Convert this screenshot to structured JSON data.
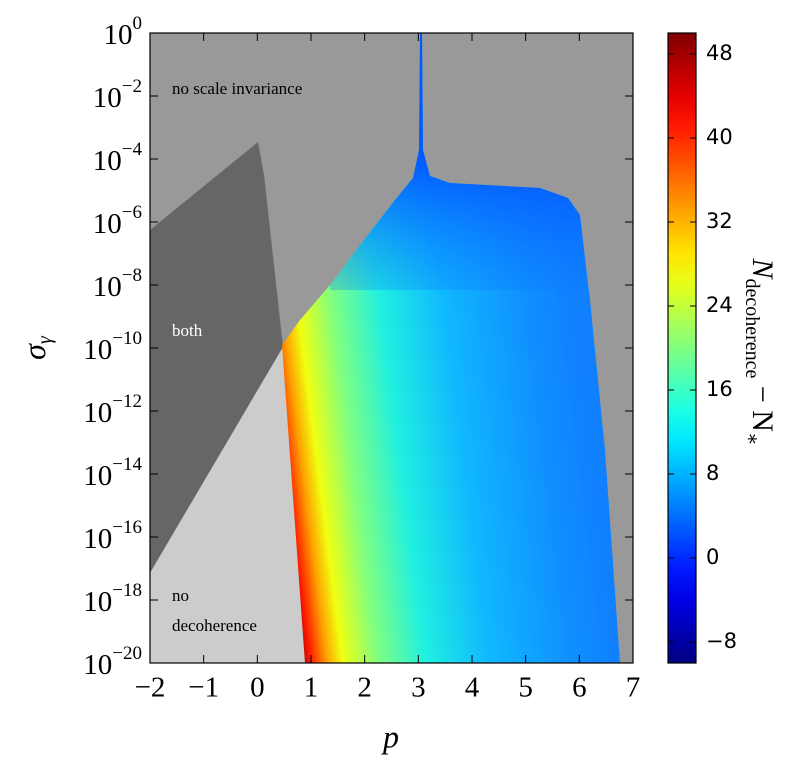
{
  "chart_data": {
    "type": "heatmap",
    "xlabel": "p",
    "ylabel": [
      "σ",
      "γ"
    ],
    "colorbar_label": [
      "N",
      "decoherence",
      " − N",
      "∗"
    ],
    "annotations": [
      "no scale invariance",
      "both",
      "no",
      "decoherence"
    ],
    "xlim": [
      -2,
      7
    ],
    "xticks": [
      {
        "value": -2,
        "label": "−2"
      },
      {
        "value": -1,
        "label": "−1"
      },
      0,
      1,
      2,
      3,
      4,
      5,
      6,
      7
    ],
    "yscale": "log",
    "ylim": [
      1e-20,
      1
    ],
    "yticks": [
      {
        "value": 1e-20,
        "label": [
          "10",
          "−20"
        ]
      },
      {
        "value": 1e-18,
        "label": [
          "10",
          "−18"
        ]
      },
      {
        "value": 1e-16,
        "label": [
          "10",
          "−16"
        ]
      },
      {
        "value": 1e-14,
        "label": [
          "10",
          "−14"
        ]
      },
      {
        "value": 1e-12,
        "label": [
          "10",
          "−12"
        ]
      },
      {
        "value": 1e-10,
        "label": [
          "10",
          "−10"
        ]
      },
      {
        "value": 1e-08,
        "label": [
          "10",
          "−8"
        ]
      },
      {
        "value": 1e-06,
        "label": [
          "10",
          "−6"
        ]
      },
      {
        "value": 0.0001,
        "label": [
          "10",
          "−4"
        ]
      },
      {
        "value": 0.01,
        "label": [
          "10",
          "−2"
        ]
      },
      {
        "value": 1,
        "label": [
          "10",
          "0"
        ]
      }
    ],
    "colormap": "jet",
    "clim": [
      -10,
      50
    ],
    "cticks": [
      {
        "value": -8,
        "label": "−8"
      },
      0,
      8,
      16,
      24,
      32,
      40,
      48
    ]
  }
}
